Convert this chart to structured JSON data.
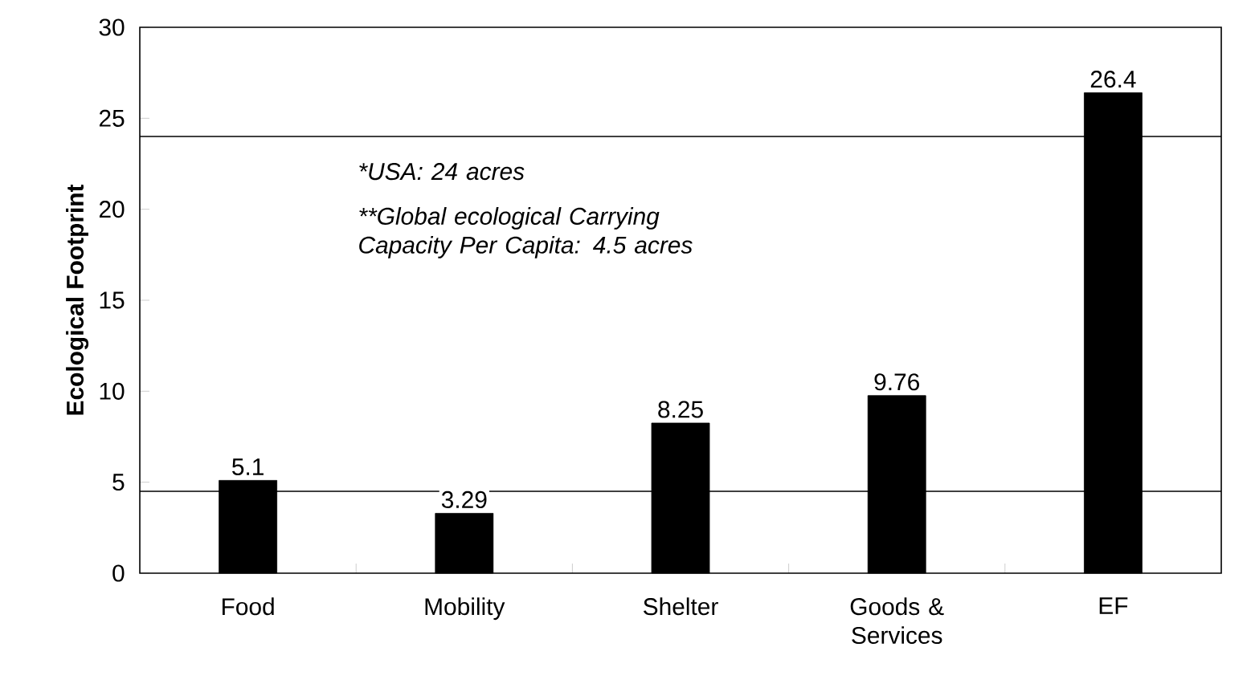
{
  "chart_data": {
    "type": "bar",
    "ylabel": "Ecological Footprint",
    "categories": [
      "Food",
      "Mobility",
      "Shelter",
      "Goods & Services",
      "EF"
    ],
    "values": [
      5.1,
      3.29,
      8.25,
      9.76,
      26.4
    ],
    "color": "#000000",
    "ylim": [
      0,
      30
    ],
    "yticks": [
      0,
      5,
      10,
      15,
      20,
      25,
      30
    ],
    "data_labels": true,
    "grid": false,
    "ref_lines": [
      {
        "axis": "y",
        "value": 24,
        "color": "#000000"
      },
      {
        "axis": "y",
        "value": 4.5,
        "color": "#000000"
      }
    ],
    "annotations": [
      "*USA: 24 acres",
      "**Global ecological Carrying Capacity Per Capita: 4.5 acres"
    ]
  }
}
